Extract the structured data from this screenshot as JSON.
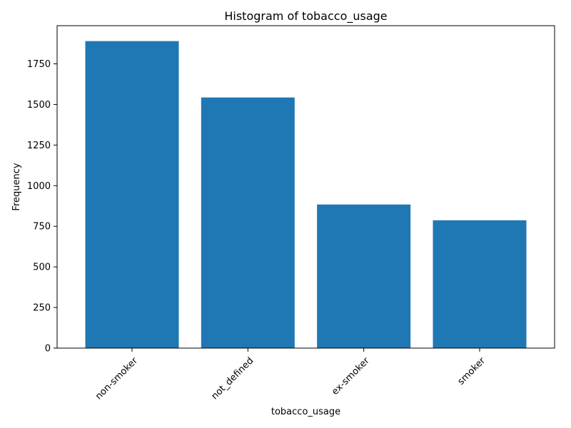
{
  "colors": {
    "bar": "#1f77b4",
    "axis": "#000000",
    "background": "#ffffff"
  },
  "chart_data": {
    "type": "bar",
    "title": "Histogram of tobacco_usage",
    "xlabel": "tobacco_usage",
    "ylabel": "Frequency",
    "categories": [
      "non-smoker",
      "not_defined",
      "ex-smoker",
      "smoker"
    ],
    "values": [
      1890,
      1543,
      884,
      787
    ],
    "ylim": [
      0,
      1985
    ],
    "yticks": [
      0,
      250,
      500,
      750,
      1000,
      1250,
      1500,
      1750
    ],
    "grid": false,
    "legend": "none"
  }
}
